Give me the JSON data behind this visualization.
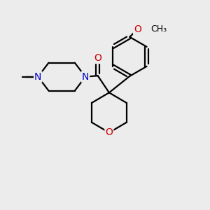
{
  "bg_color": "#ececec",
  "bond_color": "#000000",
  "bond_width": 1.6,
  "atom_colors": {
    "N": "#0000cc",
    "O": "#cc0000",
    "C": "#000000"
  },
  "font_size_atom": 10,
  "font_size_methyl": 9,
  "font_size_methoxy": 9
}
